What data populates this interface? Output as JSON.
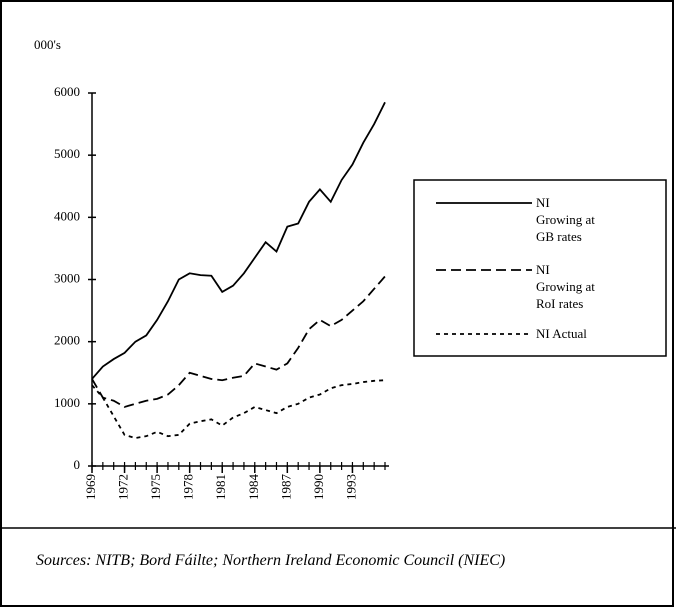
{
  "chart_data": {
    "type": "line",
    "y_label": "000's",
    "source": "Sources:  NITB; Bord Fáilte; Northern Ireland Economic Council (NIEC)",
    "x": [
      1969,
      1970,
      1971,
      1972,
      1973,
      1974,
      1975,
      1976,
      1977,
      1978,
      1979,
      1980,
      1981,
      1982,
      1983,
      1984,
      1985,
      1986,
      1987,
      1988,
      1989,
      1990,
      1991,
      1992,
      1993,
      1994,
      1995,
      1996
    ],
    "xlim": [
      1969,
      1996
    ],
    "xticks": [
      1969,
      1972,
      1975,
      1978,
      1981,
      1984,
      1987,
      1990,
      1993
    ],
    "ylim": [
      0,
      6000
    ],
    "yticks": [
      0,
      1000,
      2000,
      3000,
      4000,
      5000,
      6000
    ],
    "series": [
      {
        "name": "NI\nGrowing at\nGB rates",
        "color": "#000000",
        "style": "solid",
        "values": [
          1400,
          1600,
          1720,
          1820,
          2000,
          2100,
          2350,
          2650,
          3000,
          3100,
          3070,
          3060,
          2800,
          2900,
          3100,
          3350,
          3600,
          3450,
          3850,
          3900,
          4250,
          4450,
          4250,
          4600,
          4850,
          5200,
          5500,
          5850
        ]
      },
      {
        "name": "NI\nGrowing at\nRoI rates",
        "color": "#000000",
        "style": "dashed",
        "values": [
          1400,
          1100,
          1050,
          950,
          1000,
          1050,
          1080,
          1150,
          1300,
          1500,
          1450,
          1400,
          1380,
          1420,
          1450,
          1650,
          1600,
          1550,
          1650,
          1900,
          2200,
          2350,
          2250,
          2350,
          2500,
          2650,
          2850,
          3050
        ]
      },
      {
        "name": "NI Actual",
        "color": "#000000",
        "style": "dotted",
        "values": [
          1300,
          1100,
          800,
          500,
          450,
          480,
          550,
          480,
          500,
          680,
          720,
          750,
          650,
          780,
          850,
          950,
          900,
          850,
          950,
          1000,
          1100,
          1150,
          1250,
          1300,
          1320,
          1350,
          1370,
          1380
        ]
      }
    ]
  }
}
